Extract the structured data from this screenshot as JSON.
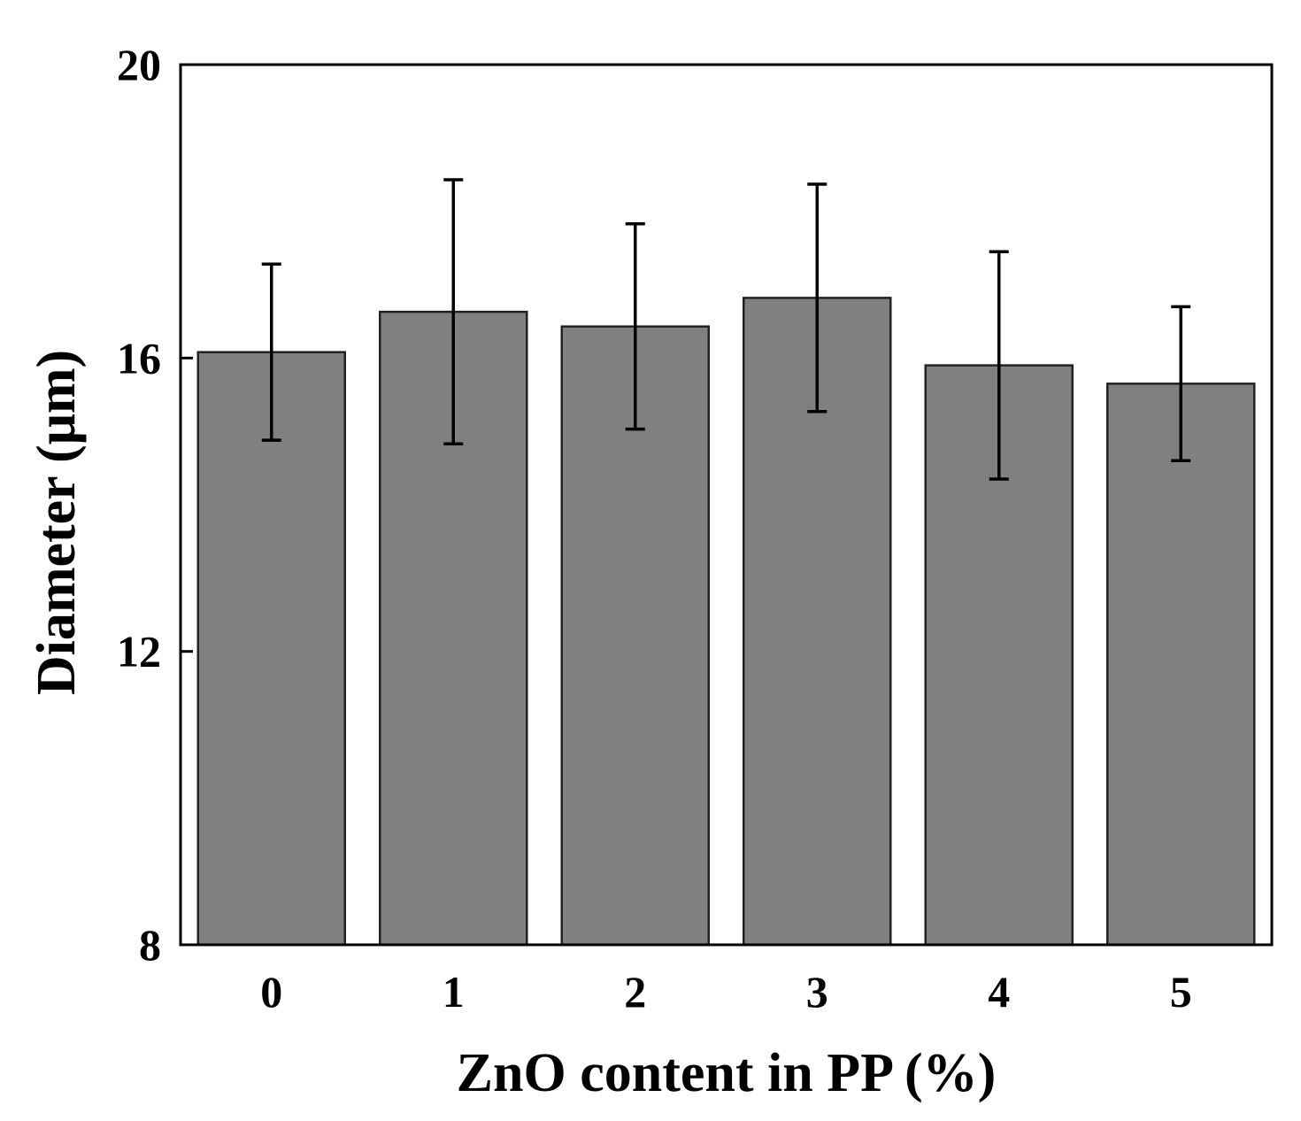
{
  "chart_data": {
    "type": "bar",
    "categories": [
      "0",
      "1",
      "2",
      "3",
      "4",
      "5"
    ],
    "values": [
      16.08,
      16.63,
      16.43,
      16.82,
      15.9,
      15.65
    ],
    "errors": [
      1.2,
      1.8,
      1.4,
      1.55,
      1.55,
      1.05
    ],
    "xlabel": "ZnO content in PP (%)",
    "ylabel": "Diameter (μm)",
    "ylim": [
      8,
      20
    ],
    "yticks": [
      8,
      12,
      16,
      20
    ],
    "grid": false,
    "bar_color": "#808080",
    "bar_edge_color": "#222222",
    "error_bar_color": "#000000"
  }
}
